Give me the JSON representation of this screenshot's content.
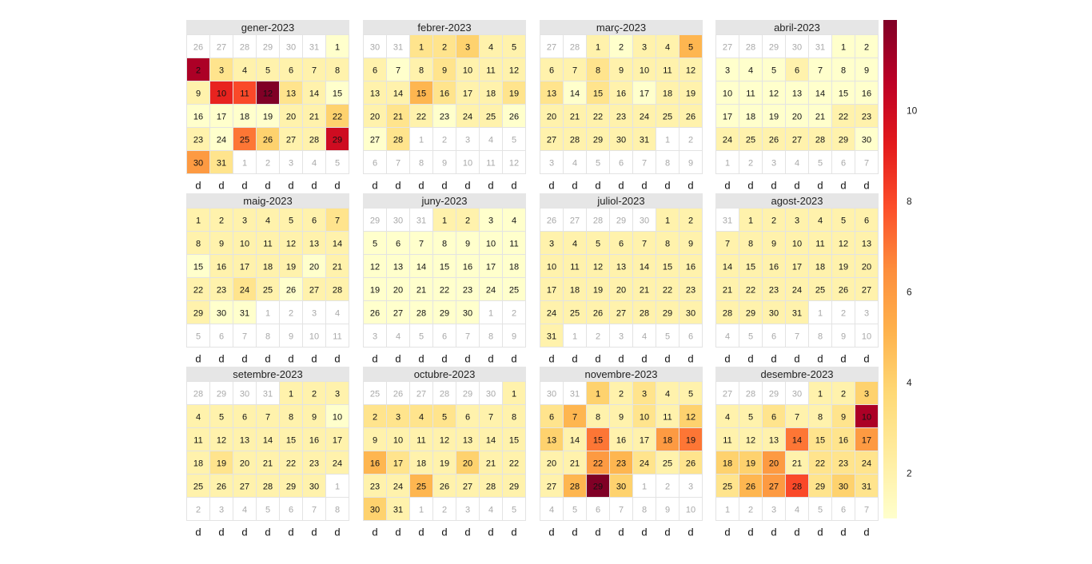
{
  "chart_data": {
    "type": "heatmap",
    "subtype": "calendar",
    "year": 2023,
    "weekday_labels": [
      "d",
      "d",
      "d",
      "d",
      "d",
      "d",
      "d"
    ],
    "colorscale": {
      "min": 1,
      "max": 12,
      "colors": [
        "#ffffcc",
        "#ffeda0",
        "#fed976",
        "#feb24c",
        "#fd8d3c",
        "#fc4e2a",
        "#e31a1c",
        "#bd0026",
        "#800026"
      ]
    },
    "colorbar_ticks": [
      2,
      4,
      6,
      8,
      10
    ],
    "months": [
      {
        "title": "gener-2023",
        "month": 1,
        "values": [
          1,
          11,
          3,
          2,
          2,
          2,
          2,
          2,
          2,
          9,
          8,
          12,
          3,
          2,
          1,
          1,
          1,
          1,
          1,
          2,
          2,
          4,
          2,
          1,
          7,
          4,
          2,
          2,
          10,
          6,
          3
        ]
      },
      {
        "title": "febrer-2023",
        "month": 2,
        "values": [
          3,
          3,
          4,
          2,
          2,
          2,
          1,
          2,
          3,
          2,
          2,
          2,
          2,
          2,
          5,
          3,
          2,
          2,
          3,
          2,
          3,
          2,
          1,
          2,
          2,
          1,
          1,
          3
        ]
      },
      {
        "title": "març-2023",
        "month": 3,
        "values": [
          2,
          1,
          2,
          2,
          5,
          2,
          2,
          3,
          2,
          2,
          2,
          2,
          3,
          1,
          3,
          2,
          1,
          2,
          2,
          2,
          2,
          2,
          2,
          2,
          2,
          2,
          2,
          2,
          2,
          2,
          2
        ]
      },
      {
        "title": "abril-2023",
        "month": 4,
        "values": [
          1,
          1,
          1,
          1,
          1,
          2,
          1,
          1,
          1,
          1,
          1,
          1,
          1,
          1,
          1,
          1,
          1,
          1,
          1,
          1,
          1,
          2,
          2,
          2,
          2,
          2,
          2,
          2,
          2,
          1
        ]
      },
      {
        "title": "maig-2023",
        "month": 5,
        "values": [
          2,
          2,
          2,
          2,
          2,
          2,
          3,
          2,
          2,
          2,
          2,
          2,
          2,
          2,
          1,
          2,
          2,
          2,
          2,
          1,
          2,
          2,
          2,
          3,
          2,
          1,
          2,
          2,
          2,
          1,
          1
        ]
      },
      {
        "title": "juny-2023",
        "month": 6,
        "values": [
          2,
          2,
          1,
          1,
          1,
          1,
          1,
          1,
          1,
          1,
          1,
          1,
          1,
          1,
          1,
          1,
          1,
          1,
          1,
          1,
          1,
          1,
          1,
          1,
          1,
          1,
          1,
          1,
          1,
          1
        ]
      },
      {
        "title": "juliol-2023",
        "month": 7,
        "values": [
          2,
          2,
          2,
          2,
          2,
          2,
          2,
          2,
          2,
          2,
          2,
          2,
          2,
          2,
          2,
          2,
          2,
          2,
          2,
          2,
          2,
          2,
          2,
          2,
          2,
          2,
          2,
          2,
          2,
          2,
          2
        ]
      },
      {
        "title": "agost-2023",
        "month": 8,
        "values": [
          2,
          2,
          2,
          2,
          2,
          2,
          2,
          2,
          2,
          2,
          2,
          2,
          2,
          2,
          2,
          2,
          2,
          2,
          2,
          2,
          2,
          2,
          2,
          2,
          2,
          2,
          2,
          2,
          2,
          2,
          2
        ]
      },
      {
        "title": "setembre-2023",
        "month": 9,
        "values": [
          2,
          2,
          2,
          2,
          2,
          2,
          2,
          2,
          2,
          1,
          2,
          2,
          2,
          2,
          2,
          2,
          2,
          2,
          3,
          2,
          2,
          2,
          2,
          2,
          2,
          2,
          2,
          2,
          2,
          2
        ]
      },
      {
        "title": "octubre-2023",
        "month": 10,
        "values": [
          2,
          3,
          3,
          3,
          3,
          2,
          2,
          2,
          2,
          2,
          2,
          2,
          2,
          2,
          2,
          5,
          3,
          2,
          2,
          4,
          2,
          2,
          2,
          2,
          5,
          2,
          2,
          2,
          2,
          4,
          2
        ]
      },
      {
        "title": "novembre-2023",
        "month": 11,
        "values": [
          4,
          2,
          3,
          2,
          2,
          3,
          5,
          2,
          2,
          3,
          2,
          4,
          4,
          2,
          7,
          2,
          2,
          6,
          7,
          2,
          2,
          6,
          5,
          3,
          2,
          3,
          2,
          5,
          12,
          4
        ]
      },
      {
        "title": "desembre-2023",
        "month": 12,
        "values": [
          2,
          2,
          4,
          2,
          2,
          3,
          2,
          2,
          3,
          11,
          2,
          2,
          2,
          7,
          3,
          3,
          6,
          4,
          4,
          6,
          2,
          3,
          3,
          3,
          3,
          5,
          6,
          8,
          3,
          4,
          3
        ]
      }
    ]
  }
}
